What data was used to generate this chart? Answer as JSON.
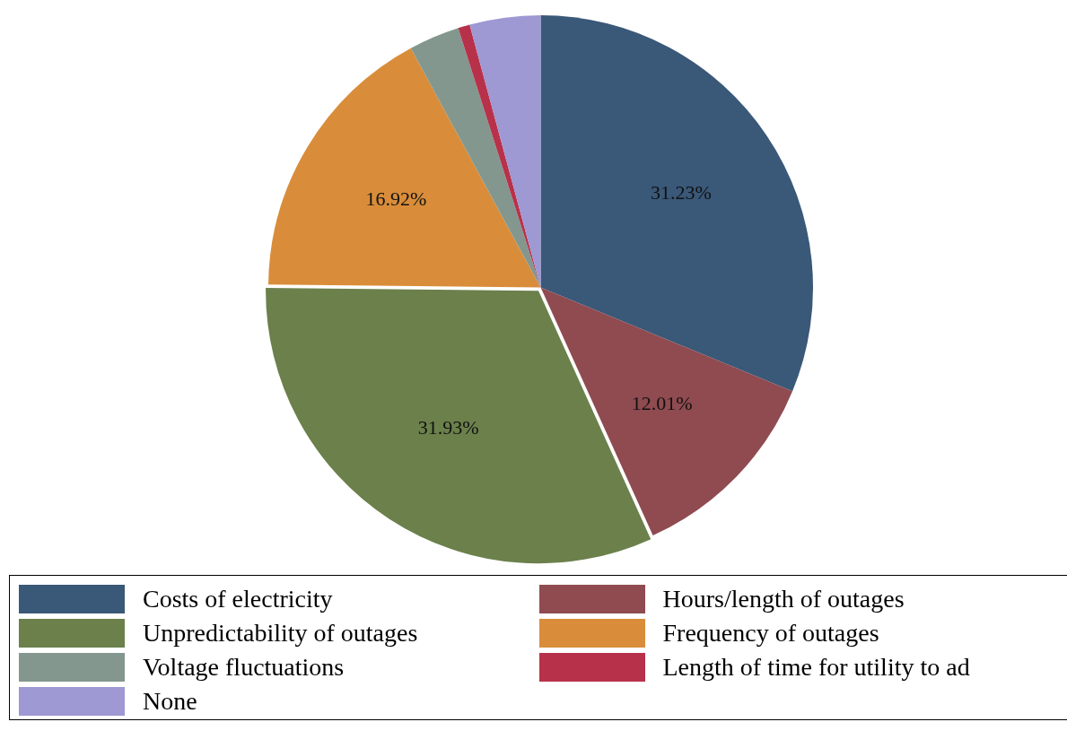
{
  "chart_data": {
    "type": "pie",
    "categories": [
      "Costs of electricity",
      "Hours/length of outages",
      "Unpredictability of outages",
      "Frequency of outages",
      "Voltage fluctuations",
      "Length of time for utility to ad",
      "None"
    ],
    "values": [
      31.23,
      12.01,
      31.93,
      16.92,
      3.01,
      0.7,
      4.2
    ],
    "colors": [
      "#3a5878",
      "#8f4b50",
      "#6b804b",
      "#d98d3a",
      "#83978e",
      "#b8314a",
      "#9e98d3"
    ],
    "value_labels": [
      "31.23%",
      "12.01%",
      "31.93%",
      "16.92%",
      null,
      null,
      null
    ],
    "legend": "bottom"
  }
}
